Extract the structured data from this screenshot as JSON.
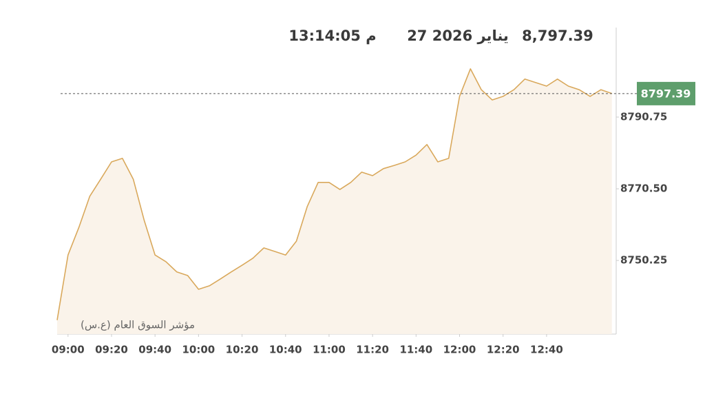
{
  "chart_data": {
    "type": "area",
    "last_value": 8797.39,
    "last_value_label": "8,797.39",
    "date": "27 يناير 2026",
    "time": "13:14:05 م",
    "series_label": "مؤشر السوق العام (ع.س)",
    "color": "#d9a85b",
    "fill": "#faf3ea",
    "badge_color": "#5e9e6c",
    "x": [
      "08:55",
      "09:00",
      "09:05",
      "09:10",
      "09:15",
      "09:20",
      "09:25",
      "09:30",
      "09:35",
      "09:40",
      "09:45",
      "09:50",
      "09:55",
      "10:00",
      "10:05",
      "10:10",
      "10:15",
      "10:20",
      "10:25",
      "10:30",
      "10:35",
      "10:40",
      "10:45",
      "10:50",
      "10:55",
      "11:00",
      "11:05",
      "11:10",
      "11:15",
      "11:20",
      "11:25",
      "11:30",
      "11:35",
      "11:40",
      "11:45",
      "11:50",
      "11:55",
      "12:00",
      "12:05",
      "12:10",
      "12:15",
      "12:20",
      "12:25",
      "12:30",
      "12:35",
      "12:40",
      "12:45",
      "12:50",
      "12:55",
      "13:00",
      "13:05",
      "13:10"
    ],
    "values": [
      8733.4,
      8751.8,
      8759.6,
      8768.4,
      8773.2,
      8778.1,
      8779.1,
      8773.2,
      8761.6,
      8751.8,
      8749.9,
      8747.0,
      8746.0,
      8742.1,
      8743.1,
      8745.0,
      8747.0,
      8748.9,
      8750.9,
      8753.8,
      8752.8,
      8751.8,
      8755.7,
      8765.5,
      8772.3,
      8772.3,
      8770.3,
      8772.3,
      8775.2,
      8774.2,
      8776.2,
      8777.1,
      8778.1,
      8780.0,
      8783.0,
      8778.1,
      8779.1,
      8796.6,
      8804.4,
      8798.5,
      8795.6,
      8796.6,
      8798.5,
      8801.5,
      8800.5,
      8799.5,
      8801.5,
      8799.5,
      8798.5,
      8796.6,
      8798.5,
      8797.4
    ],
    "xlim": [
      "08:55",
      "13:12"
    ],
    "xticks": [
      "09:00",
      "09:20",
      "09:40",
      "10:00",
      "10:20",
      "10:40",
      "11:00",
      "11:20",
      "11:40",
      "12:00",
      "12:20",
      "12:40"
    ],
    "ylim": [
      8729.45,
      8816.05
    ],
    "yticks": [
      8750.25,
      {
        "value": 8770.5,
        "label": "8770.50"
      },
      8790.75
    ]
  }
}
